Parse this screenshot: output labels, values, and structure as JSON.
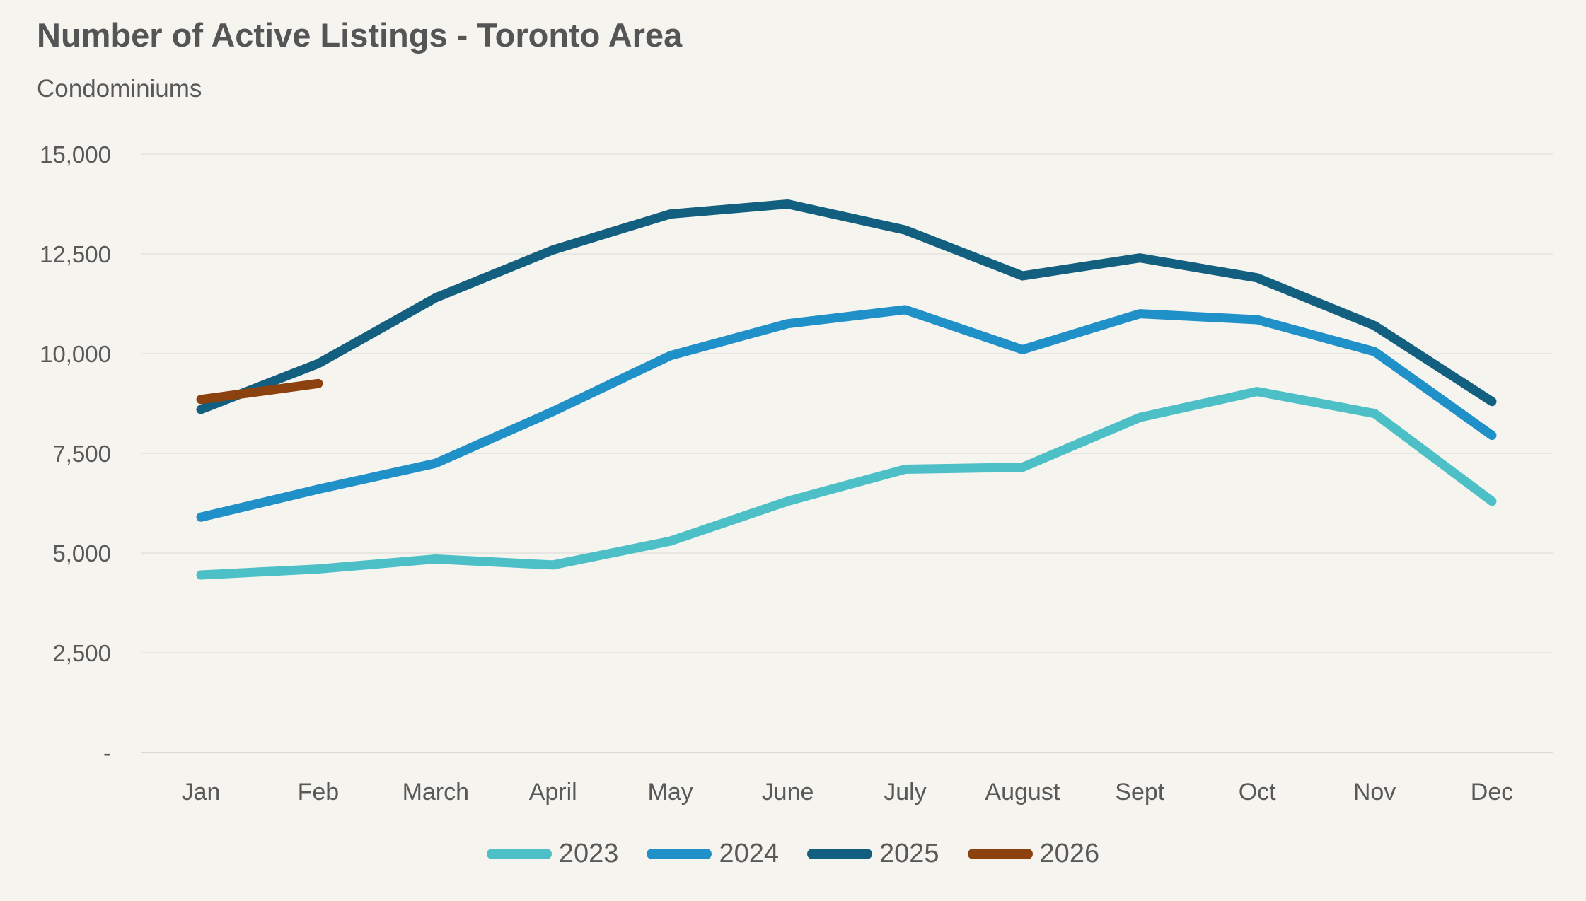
{
  "header": {
    "title": "Number of Active Listings - Toronto Area",
    "subtitle": "Condominiums"
  },
  "colors": {
    "background": "#f5f4ef",
    "gridline": "#e8e6e0",
    "axis_line": "#dbd9d2",
    "text": "#595959",
    "title_text": "#555555"
  },
  "chart_data": {
    "type": "line",
    "title": "Number of Active Listings - Toronto Area",
    "subtitle": "Condominiums",
    "categories": [
      "Jan",
      "Feb",
      "March",
      "April",
      "May",
      "June",
      "July",
      "August",
      "Sept",
      "Oct",
      "Nov",
      "Dec"
    ],
    "series": [
      {
        "name": "2023",
        "color": "#4dbfc6",
        "values": [
          4450,
          4600,
          4850,
          4700,
          5300,
          6300,
          7100,
          7150,
          8400,
          9050,
          8500,
          6300
        ]
      },
      {
        "name": "2024",
        "color": "#2090c8",
        "values": [
          5900,
          6600,
          7250,
          8550,
          9950,
          10750,
          11100,
          10100,
          11000,
          10850,
          10050,
          7950
        ]
      },
      {
        "name": "2025",
        "color": "#125f80",
        "values": [
          8600,
          9750,
          11400,
          12600,
          13500,
          13750,
          13100,
          11950,
          12400,
          11900,
          10700,
          8800
        ]
      },
      {
        "name": "2026",
        "color": "#8b420f",
        "values": [
          8850,
          9250
        ]
      }
    ],
    "y_axis": {
      "min": 0,
      "max": 15000,
      "ticks": [
        15000,
        12500,
        10000,
        7500,
        5000,
        2500,
        0
      ],
      "tick_labels": [
        "15,000",
        "12,500",
        "10,000",
        "7,500",
        "5,000",
        "2,500",
        "-"
      ]
    },
    "grid": true,
    "legend_position": "bottom",
    "legend_entries": [
      "2023",
      "2024",
      "2025",
      "2026"
    ]
  }
}
